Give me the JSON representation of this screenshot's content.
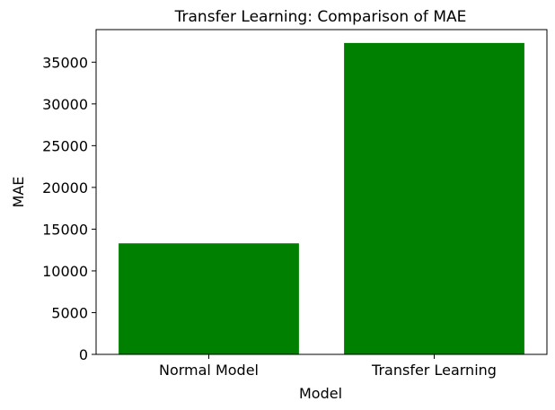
{
  "chart_data": {
    "type": "bar",
    "title": "Transfer Learning: Comparison of MAE",
    "xlabel": "Model",
    "ylabel": "MAE",
    "categories": [
      "Normal Model",
      "Transfer Learning"
    ],
    "values": [
      13300,
      37300
    ],
    "ylim": [
      0,
      38900
    ],
    "yticks": [
      0,
      5000,
      10000,
      15000,
      20000,
      25000,
      30000,
      35000
    ],
    "bar_color": "#008000",
    "grid": false,
    "legend": "none"
  }
}
